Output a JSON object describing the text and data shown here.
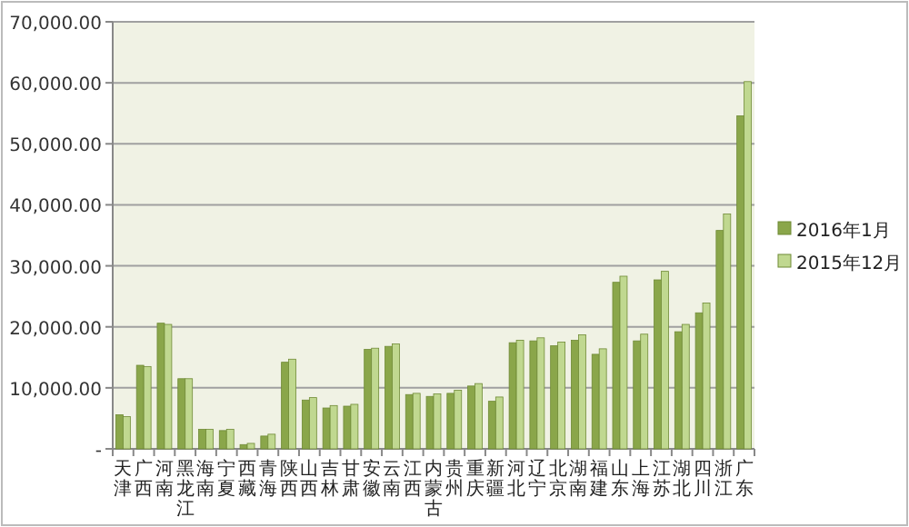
{
  "chart_data": {
    "type": "bar",
    "categories": [
      "天津",
      "广西",
      "河南",
      "黑龙江",
      "海南",
      "宁夏",
      "西藏",
      "青海",
      "陕西",
      "山西",
      "吉林",
      "甘肃",
      "安徽",
      "云南",
      "江西",
      "内蒙古",
      "贵州",
      "重庆",
      "新疆",
      "河北",
      "辽宁",
      "北京",
      "湖南",
      "福建",
      "山东",
      "上海",
      "江苏",
      "湖北",
      "四川",
      "浙江",
      "广东"
    ],
    "series": [
      {
        "name": "2016年1月",
        "color": "#8aa64a",
        "values": [
          5600,
          13700,
          20600,
          11500,
          3200,
          3000,
          700,
          2100,
          14200,
          8000,
          6700,
          7000,
          16300,
          16800,
          8900,
          8600,
          9100,
          10300,
          7800,
          17400,
          17700,
          16900,
          17800,
          15500,
          27300,
          17700,
          27700,
          19200,
          22300,
          35800,
          54600
        ]
      },
      {
        "name": "2015年12月",
        "color": "#c0d890",
        "values": [
          5300,
          13500,
          20400,
          11500,
          3200,
          3200,
          900,
          2400,
          14700,
          8400,
          7100,
          7300,
          16500,
          17200,
          9100,
          9000,
          9600,
          10700,
          8500,
          17800,
          18200,
          17500,
          18700,
          16400,
          28300,
          18800,
          29100,
          20400,
          23900,
          38500,
          60200
        ]
      }
    ],
    "ylim": [
      0,
      70000
    ],
    "yticks": [
      {
        "value": 0,
        "label": "-"
      },
      {
        "value": 10000,
        "label": "10,000.00"
      },
      {
        "value": 20000,
        "label": "20,000.00"
      },
      {
        "value": 30000,
        "label": "30,000.00"
      },
      {
        "value": 40000,
        "label": "40,000.00"
      },
      {
        "value": 50000,
        "label": "50,000.00"
      },
      {
        "value": 60000,
        "label": "60,000.00"
      },
      {
        "value": 70000,
        "label": "70,000.00"
      }
    ],
    "grid": "y",
    "legend": "right"
  }
}
